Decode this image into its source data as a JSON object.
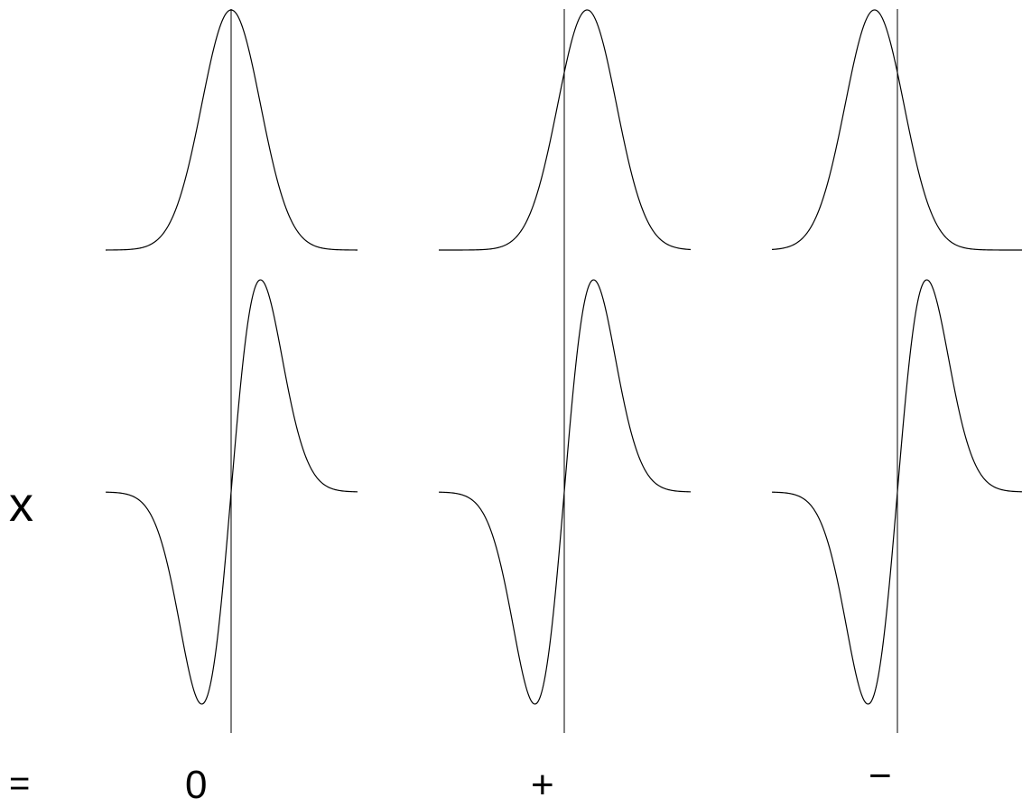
{
  "operator_label": "x",
  "equals_label": "=",
  "line_color": "#000000",
  "panels": [
    {
      "top_shift": 0.0,
      "result": "0"
    },
    {
      "top_shift": 0.55,
      "result": "+"
    },
    {
      "top_shift": -0.55,
      "result": "−"
    }
  ]
}
